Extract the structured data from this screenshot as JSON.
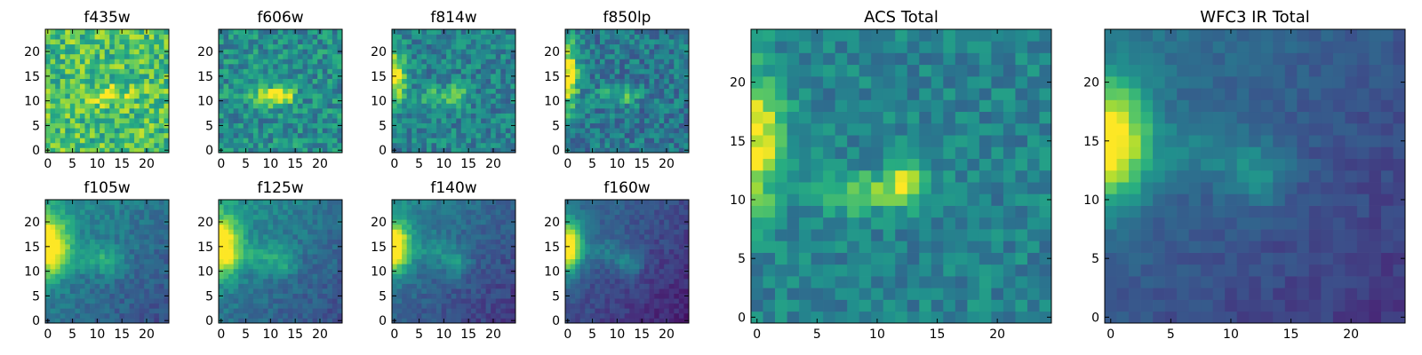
{
  "figure": {
    "colormap": "viridis",
    "pixel_grid": [
      25,
      25
    ],
    "colors": {
      "low": "#440154",
      "mid": "#21918c",
      "high": "#fde725"
    }
  },
  "chart_data": [
    {
      "type": "heatmap",
      "title": "f435w",
      "grid": [
        25,
        25
      ],
      "xlim": [
        0,
        24
      ],
      "ylim": [
        0,
        24
      ],
      "xticks": [
        "0",
        "5",
        "10",
        "15",
        "20"
      ],
      "yticks": [
        "0",
        "5",
        "10",
        "15",
        "20"
      ],
      "base": 0.7,
      "noise": 0.22,
      "gradient": 0,
      "sources": [
        {
          "x": 12,
          "y": 11,
          "amp": 0.3,
          "sx": 3,
          "sy": 1.3
        }
      ]
    },
    {
      "type": "heatmap",
      "title": "f606w",
      "grid": [
        25,
        25
      ],
      "xlim": [
        0,
        24
      ],
      "ylim": [
        0,
        24
      ],
      "xticks": [
        "0",
        "5",
        "10",
        "15",
        "20"
      ],
      "yticks": [
        "0",
        "5",
        "10",
        "15",
        "20"
      ],
      "base": 0.5,
      "noise": 0.18,
      "gradient": 0,
      "sources": [
        {
          "x": 9,
          "y": 11,
          "amp": 0.45,
          "sx": 2.2,
          "sy": 1.3
        },
        {
          "x": 12.5,
          "y": 11,
          "amp": 0.45,
          "sx": 1.6,
          "sy": 1.3
        }
      ]
    },
    {
      "type": "heatmap",
      "title": "f814w",
      "grid": [
        25,
        25
      ],
      "xlim": [
        0,
        24
      ],
      "ylim": [
        0,
        24
      ],
      "xticks": [
        "0",
        "5",
        "10",
        "15",
        "20"
      ],
      "yticks": [
        "0",
        "5",
        "10",
        "15",
        "20"
      ],
      "base": 0.45,
      "noise": 0.16,
      "gradient": 0,
      "sources": [
        {
          "x": 0,
          "y": 15,
          "amp": 0.55,
          "sx": 1.6,
          "sy": 4
        },
        {
          "x": 8,
          "y": 11,
          "amp": 0.25,
          "sx": 2,
          "sy": 1.3
        },
        {
          "x": 12.5,
          "y": 11,
          "amp": 0.45,
          "sx": 1.4,
          "sy": 1.3
        }
      ]
    },
    {
      "type": "heatmap",
      "title": "f850lp",
      "grid": [
        25,
        25
      ],
      "xlim": [
        0,
        24
      ],
      "ylim": [
        0,
        24
      ],
      "xticks": [
        "0",
        "5",
        "10",
        "15",
        "20"
      ],
      "yticks": [
        "0",
        "5",
        "10",
        "15",
        "20"
      ],
      "base": 0.4,
      "noise": 0.16,
      "gradient": 0,
      "sources": [
        {
          "x": 0,
          "y": 15,
          "amp": 0.65,
          "sx": 1.5,
          "sy": 5
        },
        {
          "x": 8,
          "y": 11,
          "amp": 0.2,
          "sx": 2,
          "sy": 1.3
        },
        {
          "x": 12.5,
          "y": 11,
          "amp": 0.3,
          "sx": 1.4,
          "sy": 1.3
        }
      ]
    },
    {
      "type": "heatmap",
      "title": "f105w",
      "grid": [
        25,
        25
      ],
      "xlim": [
        0,
        24
      ],
      "ylim": [
        0,
        24
      ],
      "xticks": [
        "0",
        "5",
        "10",
        "15",
        "20"
      ],
      "yticks": [
        "0",
        "5",
        "10",
        "15",
        "20"
      ],
      "base": 0.35,
      "noise": 0.08,
      "gradient": 0.18,
      "sources": [
        {
          "x": 0,
          "y": 15,
          "amp": 0.75,
          "sx": 2.8,
          "sy": 4
        },
        {
          "x": 8,
          "y": 13,
          "amp": 0.15,
          "sx": 3,
          "sy": 2
        },
        {
          "x": 12.5,
          "y": 12,
          "amp": 0.2,
          "sx": 2,
          "sy": 2
        }
      ]
    },
    {
      "type": "heatmap",
      "title": "f125w",
      "grid": [
        25,
        25
      ],
      "xlim": [
        0,
        24
      ],
      "ylim": [
        0,
        24
      ],
      "xticks": [
        "0",
        "5",
        "10",
        "15",
        "20"
      ],
      "yticks": [
        "0",
        "5",
        "10",
        "15",
        "20"
      ],
      "base": 0.35,
      "noise": 0.08,
      "gradient": 0.18,
      "sources": [
        {
          "x": 0,
          "y": 15,
          "amp": 0.75,
          "sx": 2.6,
          "sy": 4
        },
        {
          "x": 8,
          "y": 13,
          "amp": 0.15,
          "sx": 3,
          "sy": 2
        },
        {
          "x": 12.5,
          "y": 12,
          "amp": 0.2,
          "sx": 2,
          "sy": 2
        }
      ]
    },
    {
      "type": "heatmap",
      "title": "f140w",
      "grid": [
        25,
        25
      ],
      "xlim": [
        0,
        24
      ],
      "ylim": [
        0,
        24
      ],
      "xticks": [
        "0",
        "5",
        "10",
        "15",
        "20"
      ],
      "yticks": [
        "0",
        "5",
        "10",
        "15",
        "20"
      ],
      "base": 0.28,
      "noise": 0.07,
      "gradient": 0.2,
      "sources": [
        {
          "x": 0,
          "y": 15,
          "amp": 0.78,
          "sx": 2.2,
          "sy": 3.5
        },
        {
          "x": 8,
          "y": 14,
          "amp": 0.14,
          "sx": 3,
          "sy": 2
        },
        {
          "x": 12.5,
          "y": 11.5,
          "amp": 0.22,
          "sx": 1.8,
          "sy": 1.8
        }
      ]
    },
    {
      "type": "heatmap",
      "title": "f160w",
      "grid": [
        25,
        25
      ],
      "xlim": [
        0,
        24
      ],
      "ylim": [
        0,
        24
      ],
      "xticks": [
        "0",
        "5",
        "10",
        "15",
        "20"
      ],
      "yticks": [
        "0",
        "5",
        "10",
        "15",
        "20"
      ],
      "base": 0.2,
      "noise": 0.06,
      "gradient": 0.18,
      "sources": [
        {
          "x": 0,
          "y": 15,
          "amp": 0.85,
          "sx": 2,
          "sy": 3.5
        },
        {
          "x": 8,
          "y": 14,
          "amp": 0.14,
          "sx": 3,
          "sy": 2
        },
        {
          "x": 12.5,
          "y": 11.5,
          "amp": 0.22,
          "sx": 1.8,
          "sy": 1.8
        }
      ]
    },
    {
      "type": "heatmap",
      "title": "ACS Total",
      "grid": [
        25,
        25
      ],
      "xlim": [
        0,
        24
      ],
      "ylim": [
        0,
        24
      ],
      "xticks": [
        "0",
        "5",
        "10",
        "15",
        "20"
      ],
      "yticks": [
        "0",
        "5",
        "10",
        "15",
        "20"
      ],
      "base": 0.45,
      "noise": 0.12,
      "gradient": 0,
      "sources": [
        {
          "x": 0,
          "y": 15,
          "amp": 0.55,
          "sx": 1.6,
          "sy": 4
        },
        {
          "x": 8.5,
          "y": 10.5,
          "amp": 0.32,
          "sx": 2.2,
          "sy": 1.2
        },
        {
          "x": 12.5,
          "y": 11.5,
          "amp": 0.55,
          "sx": 1.3,
          "sy": 1.2
        }
      ]
    },
    {
      "type": "heatmap",
      "title": "WFC3 IR Total",
      "grid": [
        25,
        25
      ],
      "xlim": [
        0,
        24
      ],
      "ylim": [
        0,
        24
      ],
      "xticks": [
        "0",
        "5",
        "10",
        "15",
        "20"
      ],
      "yticks": [
        "0",
        "5",
        "10",
        "15",
        "20"
      ],
      "base": 0.25,
      "noise": 0.05,
      "gradient": 0.15,
      "sources": [
        {
          "x": 0,
          "y": 15,
          "amp": 0.75,
          "sx": 2.2,
          "sy": 3.5
        },
        {
          "x": 8,
          "y": 14,
          "amp": 0.14,
          "sx": 3,
          "sy": 2
        },
        {
          "x": 12.5,
          "y": 12,
          "amp": 0.2,
          "sx": 1.8,
          "sy": 1.8
        }
      ]
    }
  ]
}
